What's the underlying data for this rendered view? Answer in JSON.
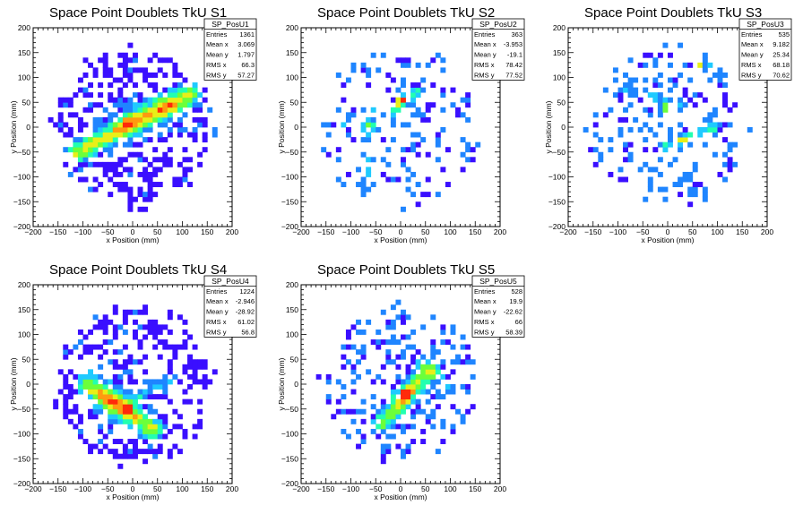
{
  "chart_data": [
    {
      "type": "heatmap",
      "title": "Space Point Doublets TkU S1",
      "xlabel": "x Position (mm)",
      "ylabel": "y Position (mm)",
      "xlim": [
        -200,
        200
      ],
      "ylim": [
        -200,
        200
      ],
      "xticks": [
        "−200",
        "−150",
        "−100",
        "−50",
        "0",
        "50",
        "100",
        "150",
        "200"
      ],
      "yticks": [
        "−200",
        "−150",
        "−100",
        "−50",
        "0",
        "50",
        "100",
        "150",
        "200"
      ],
      "stats": {
        "name": "SP_PosU1",
        "rows": [
          [
            "Entries",
            "1361"
          ],
          [
            "Mean x",
            "3.069"
          ],
          [
            "Mean y",
            "1.797"
          ],
          [
            "RMS x",
            "66.3"
          ],
          [
            "RMS y",
            "57.27"
          ]
        ]
      },
      "seed": 11,
      "fill": 0.72,
      "features": [
        {
          "type": "line",
          "x0": -110,
          "y0": -50,
          "x1": 115,
          "y1": 65,
          "w": 14,
          "amp": 0.95
        },
        {
          "type": "blob",
          "x": -10,
          "y": 10,
          "r": 25,
          "amp": 0.3
        },
        {
          "type": "blob",
          "x": 60,
          "y": 40,
          "r": 30,
          "amp": 0.25
        }
      ],
      "hotspots": [
        [
          -15,
          5,
          5
        ],
        [
          -10,
          15,
          4
        ],
        [
          10,
          15,
          4
        ],
        [
          30,
          25,
          3
        ]
      ]
    },
    {
      "type": "heatmap",
      "title": "Space Point Doublets TkU S2",
      "xlabel": "x Position (mm)",
      "ylabel": "y Position (mm)",
      "xlim": [
        -200,
        200
      ],
      "ylim": [
        -200,
        200
      ],
      "xticks": [
        "−200",
        "−150",
        "−100",
        "−50",
        "0",
        "50",
        "100",
        "150",
        "200"
      ],
      "yticks": [
        "−200",
        "−150",
        "−100",
        "−50",
        "0",
        "50",
        "100",
        "150",
        "200"
      ],
      "stats": {
        "name": "SP_PosU2",
        "rows": [
          [
            "Entries",
            "363"
          ],
          [
            "Mean x",
            "-3.953"
          ],
          [
            "Mean y",
            "-19.1"
          ],
          [
            "RMS x",
            "78.42"
          ],
          [
            "RMS y",
            "77.52"
          ]
        ]
      },
      "seed": 23,
      "fill": 0.3,
      "features": [
        {
          "type": "line",
          "x0": -70,
          "y0": -120,
          "x1": -60,
          "y1": 30,
          "w": 8,
          "amp": 0.4
        },
        {
          "type": "line",
          "x0": -120,
          "y0": 10,
          "x1": 30,
          "y1": -10,
          "w": 8,
          "amp": 0.3
        },
        {
          "type": "line",
          "x0": -20,
          "y0": 30,
          "x1": 30,
          "y1": 70,
          "w": 10,
          "amp": 0.6
        }
      ],
      "hotspots": [
        [
          5,
          55,
          5
        ],
        [
          -5,
          50,
          3
        ],
        [
          -25,
          25,
          3
        ],
        [
          -45,
          10,
          2
        ]
      ]
    },
    {
      "type": "heatmap",
      "title": "Space Point Doublets TkU S3",
      "xlabel": "x Position (mm)",
      "ylabel": "y Position (mm)",
      "xlim": [
        -200,
        200
      ],
      "ylim": [
        -200,
        200
      ],
      "xticks": [
        "−200",
        "−150",
        "−100",
        "−50",
        "0",
        "50",
        "100",
        "150",
        "200"
      ],
      "yticks": [
        "−200",
        "−150",
        "−100",
        "−50",
        "0",
        "50",
        "100",
        "150",
        "200"
      ],
      "stats": {
        "name": "SP_PosU3",
        "rows": [
          [
            "Entries",
            "535"
          ],
          [
            "Mean x",
            "9.182"
          ],
          [
            "Mean y",
            "25.34"
          ],
          [
            "RMS x",
            "68.18"
          ],
          [
            "RMS y",
            "70.62"
          ]
        ]
      },
      "seed": 37,
      "fill": 0.4,
      "features": [
        {
          "type": "line",
          "x0": -10,
          "y0": -40,
          "x1": 90,
          "y1": 0,
          "w": 10,
          "amp": 0.5
        },
        {
          "type": "line",
          "x0": -80,
          "y0": 80,
          "x1": 20,
          "y1": 40,
          "w": 10,
          "amp": 0.35
        },
        {
          "type": "blob",
          "x": 80,
          "y": 120,
          "r": 25,
          "amp": 0.3
        }
      ],
      "hotspots": [
        [
          5,
          5,
          5
        ],
        [
          60,
          120,
          3
        ],
        [
          30,
          -25,
          3
        ],
        [
          0,
          40,
          2
        ]
      ]
    },
    {
      "type": "heatmap",
      "title": "Space Point Doublets TkU S4",
      "xlabel": "x Position (mm)",
      "ylabel": "y Position (mm)",
      "xlim": [
        -200,
        200
      ],
      "ylim": [
        -200,
        200
      ],
      "xticks": [
        "−200",
        "−150",
        "−100",
        "−50",
        "0",
        "50",
        "100",
        "150",
        "200"
      ],
      "yticks": [
        "−200",
        "−150",
        "−100",
        "−50",
        "0",
        "50",
        "100",
        "150",
        "200"
      ],
      "stats": {
        "name": "SP_PosU4",
        "rows": [
          [
            "Entries",
            "1224"
          ],
          [
            "Mean x",
            "-2.946"
          ],
          [
            "Mean y",
            "-28.92"
          ],
          [
            "RMS x",
            "61.02"
          ],
          [
            "RMS y",
            "56.8"
          ]
        ]
      },
      "seed": 51,
      "fill": 0.68,
      "features": [
        {
          "type": "line",
          "x0": -90,
          "y0": 0,
          "x1": 40,
          "y1": -90,
          "w": 14,
          "amp": 0.95
        },
        {
          "type": "blob",
          "x": -40,
          "y": -40,
          "r": 30,
          "amp": 0.3
        },
        {
          "type": "line",
          "x0": 0,
          "y0": -30,
          "x1": 80,
          "y1": 10,
          "w": 8,
          "amp": 0.35
        }
      ],
      "hotspots": [
        [
          -10,
          -50,
          5
        ],
        [
          -30,
          -40,
          4
        ],
        [
          -40,
          -25,
          3
        ],
        [
          -5,
          -55,
          3
        ]
      ]
    },
    {
      "type": "heatmap",
      "title": "Space Point Doublets TkU S5",
      "xlabel": "x Position (mm)",
      "ylabel": "y Position (mm)",
      "xlim": [
        -200,
        200
      ],
      "ylim": [
        -200,
        200
      ],
      "xticks": [
        "−200",
        "−150",
        "−100",
        "−50",
        "0",
        "50",
        "100",
        "150",
        "200"
      ],
      "yticks": [
        "−200",
        "−150",
        "−100",
        "−50",
        "0",
        "50",
        "100",
        "150",
        "200"
      ],
      "stats": {
        "name": "SP_PosU5",
        "rows": [
          [
            "Entries",
            "528"
          ],
          [
            "Mean x",
            "19.9"
          ],
          [
            "Mean y",
            "-22.62"
          ],
          [
            "RMS x",
            "66"
          ],
          [
            "RMS y",
            "58.39"
          ]
        ]
      },
      "seed": 67,
      "fill": 0.4,
      "features": [
        {
          "type": "line",
          "x0": -40,
          "y0": -80,
          "x1": 60,
          "y1": 30,
          "w": 12,
          "amp": 0.8
        },
        {
          "type": "blob",
          "x": 10,
          "y": -20,
          "r": 25,
          "amp": 0.35
        },
        {
          "type": "line",
          "x0": 40,
          "y0": 40,
          "x1": 110,
          "y1": -10,
          "w": 8,
          "amp": 0.3
        }
      ],
      "hotspots": [
        [
          10,
          -20,
          5
        ],
        [
          20,
          -10,
          3
        ],
        [
          0,
          -25,
          3
        ]
      ]
    }
  ]
}
